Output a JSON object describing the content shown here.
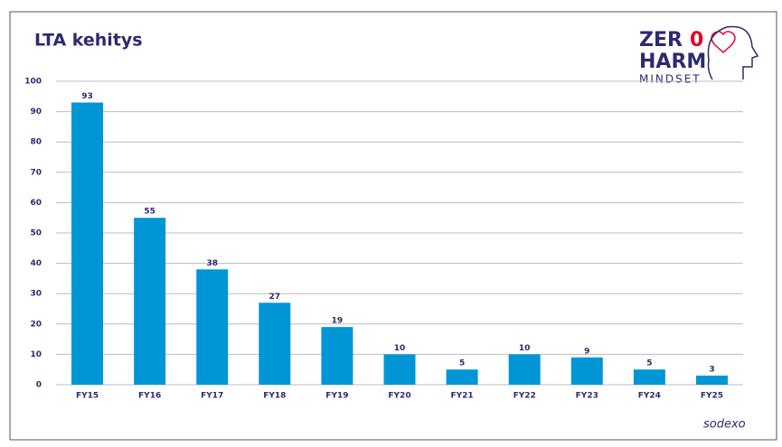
{
  "chart_data": {
    "type": "bar",
    "title": "LTA kehitys",
    "categories": [
      "FY15",
      "FY16",
      "FY17",
      "FY18",
      "FY19",
      "FY20",
      "FY21",
      "FY22",
      "FY23",
      "FY24",
      "FY25"
    ],
    "values": [
      93,
      55,
      38,
      27,
      19,
      10,
      5,
      10,
      9,
      5,
      3
    ],
    "color": "#0096d6",
    "ylim": [
      0,
      100
    ],
    "yticks": [
      0,
      10,
      20,
      30,
      40,
      50,
      60,
      70,
      80,
      90,
      100
    ],
    "grid": true
  },
  "logo": {
    "words": [
      "ZER",
      "0",
      "HARM",
      "MINDSET"
    ]
  },
  "footer": {
    "brand": "sodexo"
  }
}
